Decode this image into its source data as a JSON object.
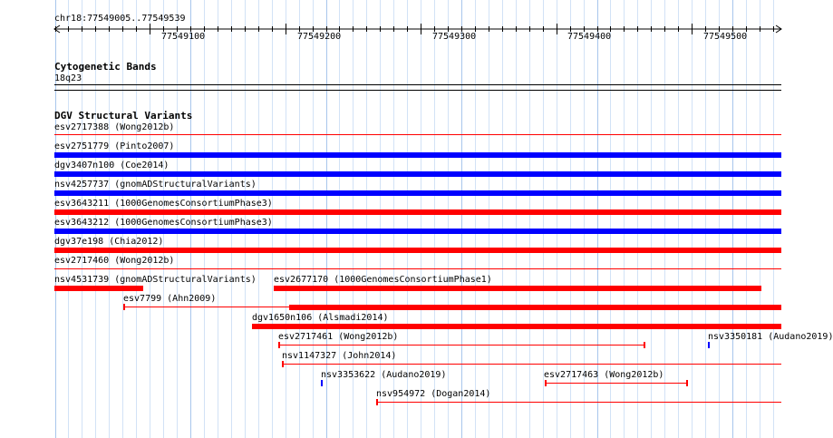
{
  "ruler": {
    "region": "chr18:77549005..77549539",
    "ticks": [
      "77549100",
      "77549200",
      "77549300",
      "77549400",
      "77549500"
    ]
  },
  "cytoband": {
    "track_title": "Cytogenetic Bands",
    "band": "18q23"
  },
  "dgv": {
    "track_title": "DGV Structural Variants",
    "colors": {
      "gain": "#0000ff",
      "loss": "#ff0000",
      "line": "#ff0000"
    },
    "features": [
      {
        "label": "esv2717388 (Wong2012b)",
        "kind": "line"
      },
      {
        "label": "esv2751779 (Pinto2007)",
        "kind": "gain"
      },
      {
        "label": "dgv3407n100 (Coe2014)",
        "kind": "gain"
      },
      {
        "label": "nsv4257737 (gnomADStructuralVariants)",
        "kind": "gain"
      },
      {
        "label": "esv3643211 (1000GenomesConsortiumPhase3)",
        "kind": "loss"
      },
      {
        "label": "esv3643212 (1000GenomesConsortiumPhase3)",
        "kind": "gain"
      },
      {
        "label": "dgv37e198 (Chia2012)",
        "kind": "loss"
      },
      {
        "label": "esv2717460 (Wong2012b)",
        "kind": "line"
      },
      {
        "label": "nsv4531739 (gnomADStructuralVariants)",
        "kind": "loss"
      },
      {
        "label": "esv2677170 (1000GenomesConsortiumPhase1)",
        "kind": "loss"
      },
      {
        "label": "esv7799 (Ahn2009)",
        "kind": "line"
      },
      {
        "label": "",
        "kind": "loss"
      },
      {
        "label": "dgv1650n106 (Alsmadi2014)",
        "kind": "loss"
      },
      {
        "label": "esv2717461 (Wong2012b)",
        "kind": "line"
      },
      {
        "label": "nsv3350181 (Audano2019)",
        "kind": "gain"
      },
      {
        "label": "nsv1147327 (John2014)",
        "kind": "line"
      },
      {
        "label": "nsv3353622 (Audano2019)",
        "kind": "gain"
      },
      {
        "label": "esv2717463 (Wong2012b)",
        "kind": "line"
      },
      {
        "label": "nsv954972 (Dogan2014)",
        "kind": "line"
      }
    ]
  }
}
